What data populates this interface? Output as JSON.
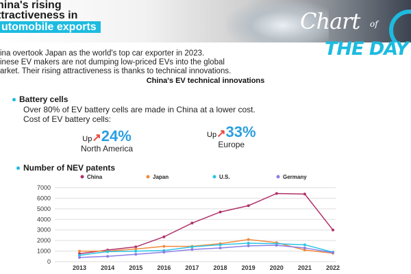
{
  "headline": {
    "line1": "hina's rising",
    "line2": "ttractiveness in",
    "line3": "utomobile exports"
  },
  "brand": {
    "chart_word": "Chart",
    "of_word": "of",
    "the_day": "THE DAY",
    "accent_color": "#1dbbe0"
  },
  "intro": {
    "line1": "ina overtook Japan as the world's top car exporter in 2023.",
    "line2": "inese EV makers are not dumping low-priced EVs into the global",
    "line3": "arket. Their rising attractiveness is thanks to technical innovations."
  },
  "section_title": "China's EV technical innovations",
  "battery": {
    "title": "Battery cells",
    "desc1": "Over 80% of EV battery cells are made in China at a lower cost.",
    "desc2": "Cost of EV battery cells:",
    "stats": [
      {
        "up_label": "Up",
        "pct": "24%",
        "region": "North America"
      },
      {
        "up_label": "Up",
        "pct": "33%",
        "region": "Europe"
      }
    ]
  },
  "patents": {
    "title": "Number of NEV patents"
  },
  "chart_data": {
    "type": "line",
    "title": "Number of NEV patents",
    "x": [
      "2013",
      "2014",
      "2015",
      "2016",
      "2017",
      "2018",
      "2019",
      "2020",
      "2021",
      "2022"
    ],
    "series": [
      {
        "name": "China",
        "color": "#b0306a",
        "values": [
          750,
          1100,
          1400,
          2350,
          3650,
          4700,
          5300,
          6450,
          6400,
          3000
        ]
      },
      {
        "name": "Japan",
        "color": "#f08a3c",
        "values": [
          1000,
          1000,
          1200,
          1450,
          1450,
          1700,
          2100,
          1800,
          1100,
          800
        ]
      },
      {
        "name": "U.S.",
        "color": "#29c4e8",
        "values": [
          600,
          950,
          1000,
          1050,
          1400,
          1600,
          1750,
          1700,
          1600,
          900
        ]
      },
      {
        "name": "Germany",
        "color": "#8c7fe8",
        "values": [
          400,
          500,
          700,
          900,
          1150,
          1300,
          1500,
          1550,
          1300,
          850
        ]
      }
    ],
    "yticks": [
      0,
      1000,
      2000,
      3000,
      4000,
      5000,
      6000,
      7000
    ],
    "ylim": [
      0,
      7000
    ],
    "grid": true,
    "legend_position": "top"
  }
}
